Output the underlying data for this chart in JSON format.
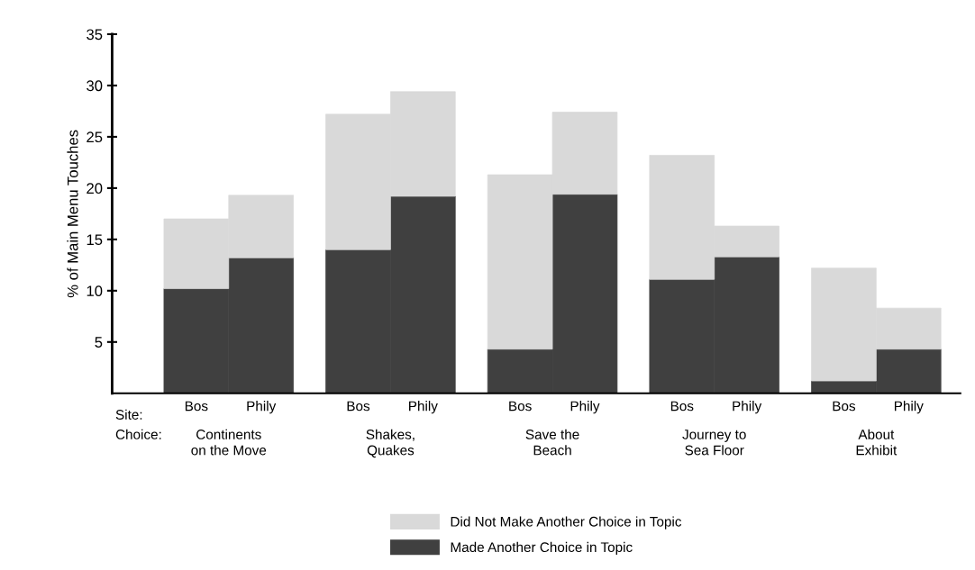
{
  "chart_data": {
    "type": "bar",
    "stacked": true,
    "ylabel": "% of Main Menu Touches",
    "categories": [
      "Bos",
      "Phily",
      "Bos",
      "Phily",
      "Bos",
      "Phily",
      "Bos",
      "Phily",
      "Bos",
      "Phily"
    ],
    "series": [
      {
        "name": "Made Another Choice in Topic",
        "color": "#404040",
        "values": [
          10.2,
          13.2,
          14.0,
          19.2,
          4.3,
          19.4,
          11.1,
          13.3,
          1.2,
          4.3
        ]
      },
      {
        "name": "Did Not Make Another Choice in Topic",
        "color": "#d9d9d9",
        "values": [
          6.8,
          6.1,
          13.2,
          10.2,
          17.0,
          8.0,
          12.1,
          3.0,
          11.0,
          4.0
        ]
      }
    ],
    "ylim": [
      0,
      35
    ],
    "yticks": [
      5,
      10,
      15,
      20,
      25,
      30,
      35
    ],
    "grid": false,
    "legend": "bottom",
    "annotations": [
      "Site:",
      "Choice:",
      "Continents\non the Move",
      "Shakes,\nQuakes",
      "Save the\nBeach",
      "Journey to\nSea Floor",
      "About\nExhibit"
    ]
  }
}
